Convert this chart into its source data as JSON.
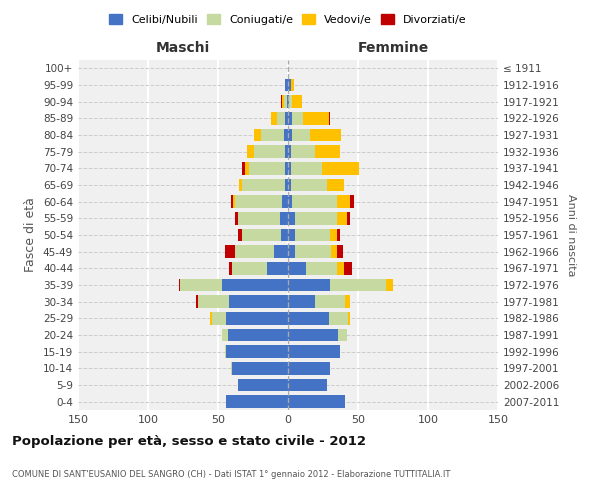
{
  "age_groups": [
    "0-4",
    "5-9",
    "10-14",
    "15-19",
    "20-24",
    "25-29",
    "30-34",
    "35-39",
    "40-44",
    "45-49",
    "50-54",
    "55-59",
    "60-64",
    "65-69",
    "70-74",
    "75-79",
    "80-84",
    "85-89",
    "90-94",
    "95-99",
    "100+"
  ],
  "birth_years": [
    "2007-2011",
    "2002-2006",
    "1997-2001",
    "1992-1996",
    "1987-1991",
    "1982-1986",
    "1977-1981",
    "1972-1976",
    "1967-1971",
    "1962-1966",
    "1957-1961",
    "1952-1956",
    "1947-1951",
    "1942-1946",
    "1937-1941",
    "1932-1936",
    "1927-1931",
    "1922-1926",
    "1917-1921",
    "1912-1916",
    "≤ 1911"
  ],
  "male": {
    "celibi": [
      44,
      36,
      40,
      44,
      43,
      44,
      42,
      47,
      15,
      10,
      5,
      6,
      4,
      2,
      2,
      2,
      3,
      2,
      1,
      2,
      0
    ],
    "coniugati": [
      0,
      0,
      1,
      1,
      4,
      10,
      22,
      30,
      25,
      28,
      28,
      30,
      34,
      31,
      26,
      22,
      16,
      6,
      2,
      0,
      0
    ],
    "vedovi": [
      0,
      0,
      0,
      0,
      0,
      2,
      0,
      0,
      0,
      0,
      0,
      0,
      1,
      2,
      3,
      5,
      5,
      4,
      1,
      0,
      0
    ],
    "divorziati": [
      0,
      0,
      0,
      0,
      0,
      0,
      2,
      1,
      2,
      7,
      3,
      2,
      2,
      0,
      2,
      0,
      0,
      0,
      1,
      0,
      0
    ]
  },
  "female": {
    "nubili": [
      41,
      28,
      30,
      37,
      36,
      29,
      19,
      30,
      13,
      5,
      5,
      5,
      3,
      2,
      2,
      2,
      3,
      3,
      1,
      2,
      0
    ],
    "coniugate": [
      0,
      0,
      0,
      0,
      6,
      14,
      22,
      40,
      22,
      26,
      25,
      30,
      32,
      26,
      22,
      17,
      13,
      8,
      2,
      0,
      0
    ],
    "vedove": [
      0,
      0,
      0,
      0,
      0,
      1,
      3,
      5,
      5,
      4,
      5,
      7,
      9,
      12,
      27,
      18,
      22,
      18,
      7,
      2,
      0
    ],
    "divorziate": [
      0,
      0,
      0,
      0,
      0,
      0,
      0,
      0,
      6,
      4,
      2,
      2,
      3,
      0,
      0,
      0,
      0,
      1,
      0,
      0,
      0
    ]
  },
  "colors": {
    "celibi": "#4472c4",
    "coniugati": "#c5d9a0",
    "vedovi": "#ffc000",
    "divorziati": "#c00000"
  },
  "xlim": 150,
  "title": "Popolazione per età, sesso e stato civile - 2012",
  "subtitle": "COMUNE DI SANT'EUSANIO DEL SANGRO (CH) - Dati ISTAT 1° gennaio 2012 - Elaborazione TUTTITALIA.IT",
  "ylabel_left": "Fasce di età",
  "ylabel_right": "Anni di nascita",
  "label_maschi": "Maschi",
  "label_femmine": "Femmine",
  "legend_labels": [
    "Celibi/Nubili",
    "Coniugati/e",
    "Vedovi/e",
    "Divorziati/e"
  ],
  "bg_color": "#ffffff",
  "plot_bg_color": "#f0f0f0"
}
